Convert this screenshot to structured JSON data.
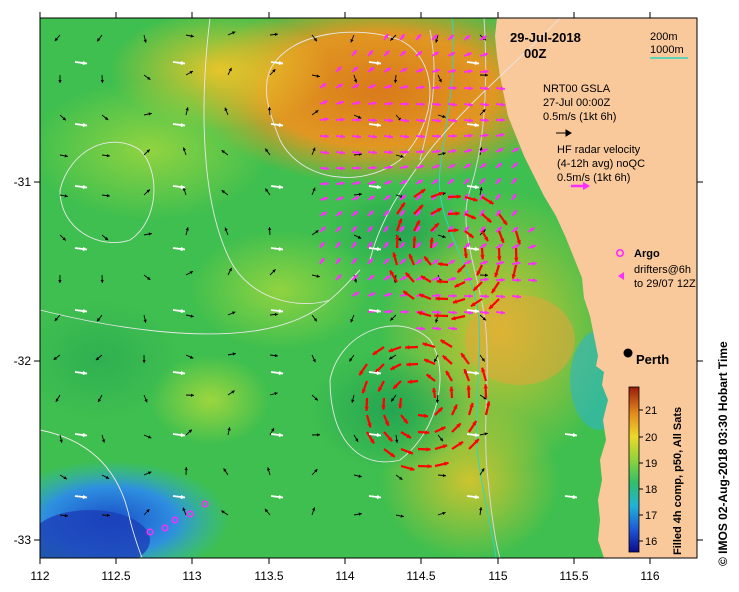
{
  "header": {
    "date": "29-Jul-2018",
    "time": "00Z"
  },
  "isobath_legend": {
    "items": [
      {
        "label": "200m",
        "color": "#d8d8d8"
      },
      {
        "label": "1000m",
        "color": "#2fd6c0"
      }
    ]
  },
  "legend": {
    "gsla_title": "NRT00 GSLA",
    "gsla_date": "27-Jul 00:00Z",
    "gsla_scale": "0.5m/s (1kt 6h)",
    "radar_line1": "HF radar velocity",
    "radar_line2": "(4-12h avg) noQC",
    "radar_scale": "0.5m/s (1kt 6h)",
    "argo_label": "Argo",
    "drifters_line1": "drifters@6h",
    "drifters_line2": "to 29/07 12Z"
  },
  "place": {
    "name": "Perth",
    "lon": 115.86,
    "lat": -31.95
  },
  "axes": {
    "x_ticks": [
      "112",
      "112.5",
      "113",
      "113.5",
      "114",
      "114.5",
      "115",
      "115.5",
      "116"
    ],
    "y_ticks": [
      "-31",
      "-32",
      "-33"
    ],
    "x_range": [
      112,
      116.3
    ],
    "y_range": [
      -33.1,
      -30.15
    ]
  },
  "colorbar": {
    "ticks": [
      "21",
      "20",
      "19",
      "18",
      "17",
      "16"
    ],
    "range": [
      15.7,
      21.7
    ],
    "label": "Filled 4h comp, p50, All Sats"
  },
  "credit": "© IMOS 02-Aug-2018 03:30 Hobart Time",
  "colors": {
    "land": "#f9c89b",
    "gsla_arrow": "#000000",
    "argo": "#ff2cff",
    "radar_arrow": "#ff2cff",
    "eddy_arrow": "#ff0000",
    "drift_arrow": "#ffffff",
    "isobath_200": "#d8d8d8",
    "isobath_1000": "#2fd6c0"
  }
}
